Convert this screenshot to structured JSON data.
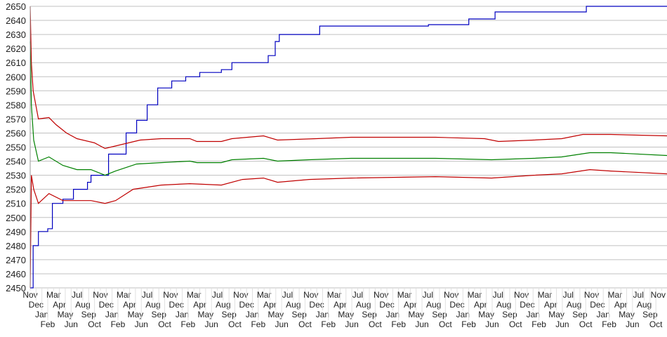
{
  "chart_data": {
    "type": "line",
    "title": "",
    "xlabel": "",
    "ylabel": "",
    "ylim": [
      2450,
      2650
    ],
    "yticks": [
      2450,
      2460,
      2470,
      2480,
      2490,
      2500,
      2510,
      2520,
      2530,
      2540,
      2550,
      2560,
      2570,
      2580,
      2590,
      2600,
      2610,
      2620,
      2630,
      2640,
      2650
    ],
    "xlim": [
      0,
      108.9
    ],
    "grid": "horizontal",
    "legend": "none",
    "xtick_labels": [
      "Nov",
      "Dec",
      "Jan",
      "Feb",
      "Mar",
      "Apr",
      "May",
      "Jun",
      "Jul",
      "Aug",
      "Sep",
      "Oct",
      "Nov",
      "Dec",
      "Jan",
      "Feb",
      "Mar",
      "Apr",
      "May",
      "Jun",
      "Jul",
      "Aug",
      "Sep",
      "Oct",
      "Nov",
      "Dec",
      "Jan",
      "Feb",
      "Mar",
      "Apr",
      "May",
      "Jun",
      "Jul",
      "Aug",
      "Sep",
      "Oct",
      "Nov",
      "Dec",
      "Jan",
      "Feb",
      "Mar",
      "Apr",
      "May",
      "Jun",
      "Jul",
      "Aug",
      "Sep",
      "Oct",
      "Nov",
      "Dec",
      "Jan",
      "Feb",
      "Mar",
      "Apr",
      "May",
      "Jun",
      "Jul",
      "Aug",
      "Sep",
      "Oct",
      "Nov",
      "Dec",
      "Jan",
      "Feb",
      "Mar",
      "Apr",
      "May",
      "Jun",
      "Jul",
      "Aug",
      "Sep",
      "Oct",
      "Nov",
      "Dec",
      "Jan",
      "Feb",
      "Mar",
      "Apr",
      "May",
      "Jun",
      "Jul",
      "Aug",
      "Sep",
      "Oct",
      "Nov",
      "Dec",
      "Jan",
      "Feb",
      "Mar",
      "Apr",
      "May",
      "Jun",
      "Jul",
      "Aug",
      "Sep",
      "Oct",
      "Nov",
      "Dec",
      "Jan",
      "Feb",
      "Mar",
      "Apr",
      "May",
      "Jun",
      "Jul",
      "Aug",
      "Sep",
      "Oct",
      "Nov"
    ],
    "series": [
      {
        "color": "#0000c0",
        "step": true,
        "x": [
          0,
          0.5,
          1.4,
          3,
          3.8,
          5.6,
          7.4,
          9.8,
          10.4,
          13.4,
          16.4,
          18.2,
          20,
          21.8,
          24.2,
          26.6,
          29,
          32.7,
          34.5,
          39.9,
          40.7,
          41.9,
          42.6,
          45.9,
          49.5,
          66.9,
          68.1,
          74.7,
          75,
          78.3,
          79.5,
          95.1,
          108.9
        ],
        "y": [
          2450,
          2480,
          2490,
          2492,
          2510,
          2513,
          2520,
          2525,
          2530,
          2545,
          2560,
          2569,
          2580,
          2592,
          2597,
          2600,
          2603,
          2605,
          2610,
          2610,
          2615,
          2625,
          2630,
          2630,
          2636,
          2636,
          2637,
          2637,
          2641,
          2641,
          2646,
          2650,
          2650
        ]
      },
      {
        "color": "#c00000",
        "x": [
          0,
          0.2,
          0.5,
          1.4,
          3.2,
          4.4,
          6.2,
          8,
          11,
          12.8,
          15.8,
          18.8,
          22.4,
          27.3,
          28.5,
          32.7,
          34.5,
          39.9,
          42.3,
          48.9,
          54.9,
          69.3,
          77.7,
          80.1,
          86.1,
          90.9,
          94.5,
          99.3,
          108.9
        ],
        "y": [
          2650,
          2610,
          2590,
          2570,
          2571,
          2566,
          2560,
          2556,
          2553,
          2549,
          2552,
          2555,
          2556,
          2556,
          2554,
          2554,
          2556,
          2558,
          2555,
          2556,
          2557,
          2557,
          2556,
          2554,
          2555,
          2556,
          2559,
          2559,
          2558
        ]
      },
      {
        "color": "#008000",
        "x": [
          0,
          0.2,
          0.6,
          1.4,
          3.2,
          5.6,
          8,
          10.4,
          12.8,
          14.6,
          18.2,
          22.4,
          27.3,
          28.5,
          32.7,
          34.5,
          39.9,
          42.3,
          47.7,
          54.9,
          69.3,
          78.9,
          86.1,
          90.9,
          95.7,
          99.3,
          108.9
        ],
        "y": [
          2625,
          2580,
          2555,
          2540,
          2543,
          2537,
          2534,
          2534,
          2530,
          2533,
          2538,
          2539,
          2540,
          2539,
          2539,
          2541,
          2542,
          2540,
          2541,
          2542,
          2542,
          2541,
          2542,
          2543,
          2546,
          2546,
          2544
        ]
      },
      {
        "color": "#c00000",
        "x": [
          0,
          0.2,
          0.6,
          1.4,
          3.2,
          5.6,
          10.4,
          12.8,
          14.6,
          17.6,
          22.4,
          27.3,
          32.7,
          36.3,
          39.9,
          42.3,
          47.7,
          54.9,
          69.3,
          78.9,
          86.1,
          90.9,
          95.7,
          99.3,
          108.9
        ],
        "y": [
          2450,
          2530,
          2520,
          2510,
          2517,
          2512,
          2512,
          2510,
          2512,
          2520,
          2523,
          2524,
          2523,
          2527,
          2528,
          2525,
          2527,
          2528,
          2529,
          2528,
          2530,
          2531,
          2534,
          2533,
          2531
        ]
      }
    ]
  }
}
